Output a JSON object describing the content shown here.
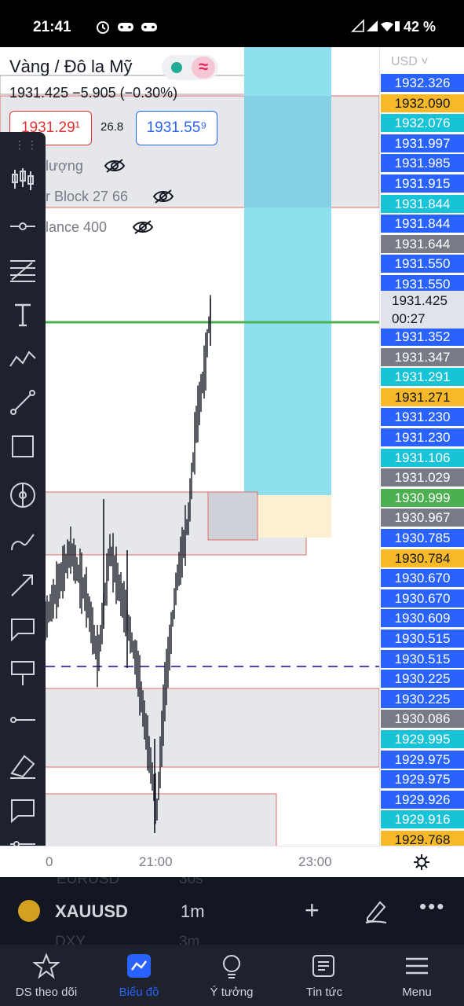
{
  "status_bar": {
    "time": "21:41",
    "battery": "42 %",
    "left_icons": "alarm-icon game-controller-icon game-controller-icon",
    "right_icons": "signal-icon wifi-icon battery-icon"
  },
  "header": {
    "title": "Vàng / Đô la Mỹ",
    "quote": "1931.425  −5.905 (−0.30%)",
    "bid": "1931.29¹",
    "spread": "26.8",
    "ask": "1931.55⁹",
    "indicators": [
      {
        "label": "lượng"
      },
      {
        "label": "r Block 27 66"
      },
      {
        "label": "lance 400"
      }
    ]
  },
  "price_axis": {
    "currency": "USD",
    "current_price": "1931.425",
    "countdown": "00:27",
    "labels": [
      {
        "text": "1932.326",
        "color": "#2962ff"
      },
      {
        "text": "1932.090",
        "color": "#f7b928"
      },
      {
        "text": "1932.076",
        "color": "#17c3d6"
      },
      {
        "text": "1931.997",
        "color": "#2962ff"
      },
      {
        "text": "1931.985",
        "color": "#2962ff"
      },
      {
        "text": "1931.915",
        "color": "#2962ff"
      },
      {
        "text": "1931.844",
        "color": "#17c3d6"
      },
      {
        "text": "1931.844",
        "color": "#2962ff"
      },
      {
        "text": "1931.644",
        "color": "#787b86"
      },
      {
        "text": "1931.550",
        "color": "#2962ff"
      },
      {
        "text": "1931.550",
        "color": "#2962ff"
      },
      {
        "text": "1931.352",
        "color": "#2962ff"
      },
      {
        "text": "1931.347",
        "color": "#787b86"
      },
      {
        "text": "1931.291",
        "color": "#17c3d6"
      },
      {
        "text": "1931.271",
        "color": "#f7b928"
      },
      {
        "text": "1931.230",
        "color": "#2962ff"
      },
      {
        "text": "1931.230",
        "color": "#2962ff"
      },
      {
        "text": "1931.106",
        "color": "#17c3d6"
      },
      {
        "text": "1931.029",
        "color": "#787b86"
      },
      {
        "text": "1930.999",
        "color": "#4caf50"
      },
      {
        "text": "1930.967",
        "color": "#787b86"
      },
      {
        "text": "1930.785",
        "color": "#2962ff"
      },
      {
        "text": "1930.784",
        "color": "#f7b928"
      },
      {
        "text": "1930.670",
        "color": "#2962ff"
      },
      {
        "text": "1930.670",
        "color": "#2962ff"
      },
      {
        "text": "1930.609",
        "color": "#2962ff"
      },
      {
        "text": "1930.515",
        "color": "#2962ff"
      },
      {
        "text": "1930.515",
        "color": "#2962ff"
      },
      {
        "text": "1930.225",
        "color": "#2962ff"
      },
      {
        "text": "1930.225",
        "color": "#2962ff"
      },
      {
        "text": "1930.086",
        "color": "#787b86"
      },
      {
        "text": "1929.995",
        "color": "#17c3d6"
      },
      {
        "text": "1929.975",
        "color": "#2962ff"
      },
      {
        "text": "1929.975",
        "color": "#2962ff"
      },
      {
        "text": "1929.926",
        "color": "#2962ff"
      },
      {
        "text": "1929.916",
        "color": "#17c3d6"
      },
      {
        "text": "1929.768",
        "color": "#f7b928"
      }
    ]
  },
  "time_axis": {
    "labels": [
      "0",
      "21:00",
      "23:00"
    ]
  },
  "symbol_bar": {
    "symbol": "XAUUSD",
    "timeframe": "1m",
    "behind_top": "EURUSD",
    "behind_top_tf": "30s",
    "behind_bottom": "DXY",
    "behind_bottom_tf": "3m"
  },
  "nav": [
    {
      "label": "DS theo dõi",
      "icon": "star-icon"
    },
    {
      "label": "Biểu đồ",
      "icon": "chart-icon",
      "active": true
    },
    {
      "label": "Ý tưởng",
      "icon": "lightbulb-icon"
    },
    {
      "label": "Tin tức",
      "icon": "news-icon"
    },
    {
      "label": "Menu",
      "icon": "menu-icon"
    }
  ],
  "toolbar_tools": [
    "candles-icon",
    "horizontal-line-icon",
    "fib-icon",
    "text-icon",
    "pattern-icon",
    "trendline-icon",
    "rectangle-icon",
    "magnet-icon",
    "brush-icon",
    "arrow-icon",
    "callout-icon",
    "signpost-icon",
    "ray-icon",
    "eraser-icon",
    "comment-icon",
    "settings-list-icon"
  ],
  "colors": {
    "accent": "#2962ff",
    "toolbar_bg": "#1e222d",
    "green_line": "#4caf50",
    "dashed_line": "#5b3cc4",
    "cyan_zone": "#8ee0ee"
  }
}
